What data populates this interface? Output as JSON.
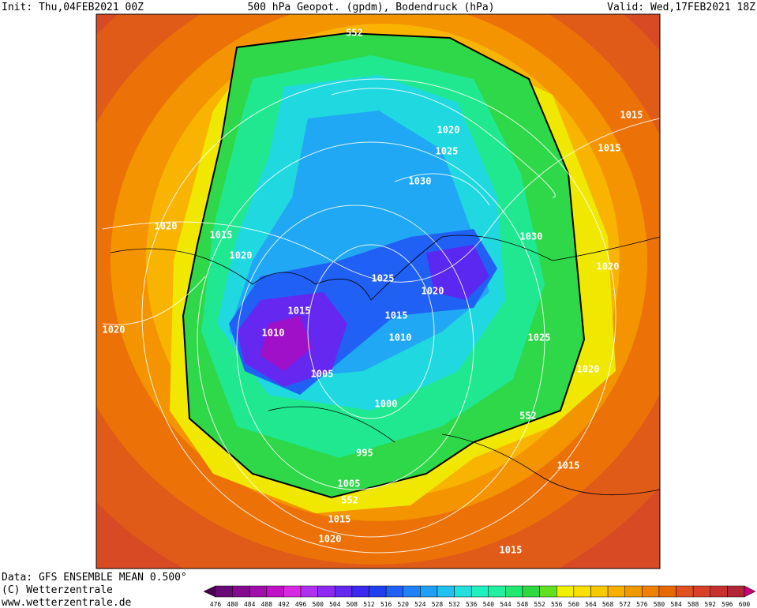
{
  "header": {
    "init": "Init: Thu,04FEB2021 00Z",
    "title": "500 hPa Geopot. (gpdm), Bodendruck (hPa)",
    "valid": "Valid: Wed,17FEB2021 18Z"
  },
  "contour_labels": [
    552,
    1020,
    1025,
    1030,
    1015,
    1015,
    1020,
    1015,
    1020,
    1030,
    1020,
    1025,
    1020,
    1015,
    1015,
    1010,
    1010,
    1025,
    1020,
    1020,
    1005,
    1000,
    552,
    995,
    1015,
    1005,
    552,
    1015,
    1020,
    1015
  ],
  "footer": {
    "data": "Data: GFS ENSEMBLE MEAN 0.500°",
    "copyright": "(C) Wetterzentrale",
    "url": "www.wetterzentrale.de"
  },
  "colorbar": {
    "labels": [
      476,
      480,
      484,
      488,
      492,
      496,
      500,
      504,
      508,
      512,
      516,
      520,
      524,
      528,
      532,
      536,
      540,
      544,
      548,
      552,
      556,
      560,
      564,
      568,
      572,
      576,
      580,
      584,
      588,
      592,
      596,
      600
    ],
    "colors": [
      "#4b0050",
      "#6a0a78",
      "#840a90",
      "#a010a8",
      "#c010c8",
      "#d828e0",
      "#b030f0",
      "#8c28f0",
      "#6428f0",
      "#3c28f0",
      "#2040f0",
      "#2060f5",
      "#2080f5",
      "#20a0f5",
      "#20c0f0",
      "#20e0e0",
      "#20f0c0",
      "#20f0a0",
      "#20e870",
      "#30d840",
      "#60e020",
      "#f0f000",
      "#f8e000",
      "#f8c800",
      "#f8b000",
      "#f09800",
      "#f08000",
      "#e86800",
      "#e05020",
      "#d84028",
      "#c83030",
      "#b02838",
      "#c80078"
    ]
  }
}
